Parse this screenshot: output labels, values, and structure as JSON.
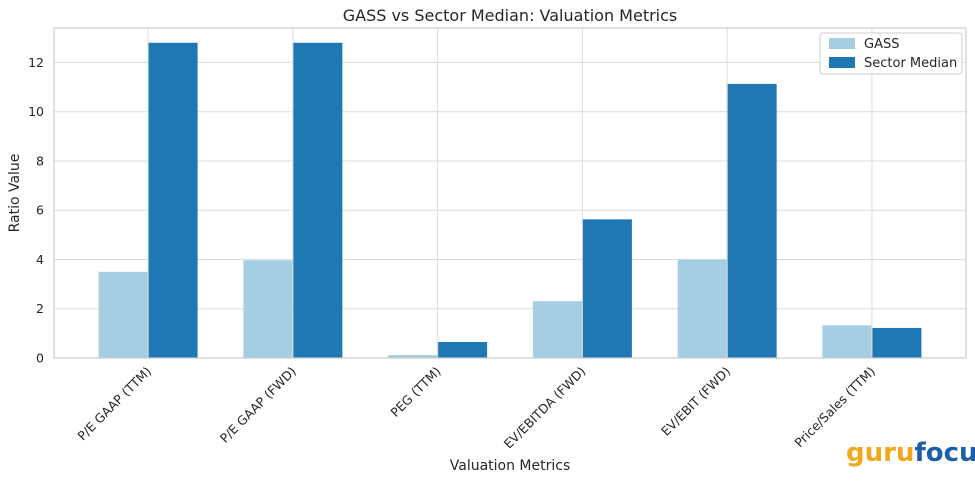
{
  "chart_data": {
    "type": "bar",
    "title": "GASS vs Sector Median: Valuation Metrics",
    "xlabel": "Valuation Metrics",
    "ylabel": "Ratio Value",
    "categories": [
      "P/E GAAP (TTM)",
      "P/E GAAP (FWD)",
      "PEG (TTM)",
      "EV/EBITDA (FWD)",
      "EV/EBIT (FWD)",
      "Price/Sales (TTM)"
    ],
    "series": [
      {
        "name": "GASS",
        "color": "#a6cee3",
        "values": [
          3.5,
          3.97,
          0.12,
          2.31,
          4.0,
          1.33
        ]
      },
      {
        "name": "Sector Median",
        "color": "#1f78b4",
        "values": [
          12.8,
          12.8,
          0.65,
          5.63,
          11.13,
          1.22
        ]
      }
    ],
    "ylim": [
      0,
      13.4
    ],
    "yticks": [
      0,
      2,
      4,
      6,
      8,
      10,
      12
    ],
    "grid": true,
    "legend_position": "top-right"
  },
  "watermark": {
    "part1": "guru",
    "part2": "focus"
  }
}
